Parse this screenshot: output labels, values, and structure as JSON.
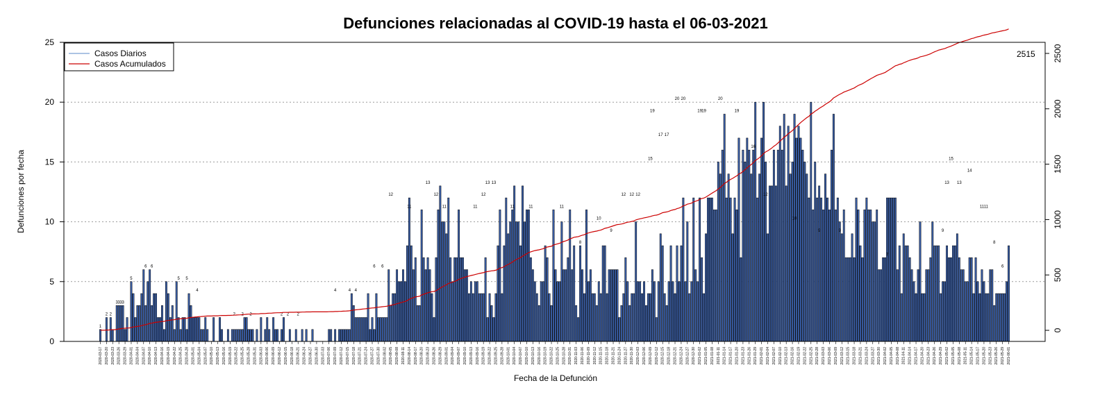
{
  "chart_data": {
    "type": "bar",
    "title": "Defunciones relacionadas al COVID-19 hasta el 06-03-2021",
    "xlabel": "Fecha de la Defunción",
    "ylabel": "Defunciones por fecha",
    "ylim": [
      0,
      25
    ],
    "y_ticks": [
      0,
      5,
      10,
      15,
      20,
      25
    ],
    "y2lim": [
      -100,
      2600
    ],
    "y2_ticks": [
      0,
      500,
      1000,
      1500,
      2000,
      2500
    ],
    "grid": "horizontal dotted",
    "legend_position": "top-left",
    "final_cumulative_label": "2515",
    "colors": {
      "bar_fill": "#3a5fa8",
      "bar_stroke": "#000000",
      "daily_legend": "#7a9fd4",
      "cumulative": "#cc0000",
      "grid": "#999999"
    },
    "series": [
      {
        "name": "Casos Diarios",
        "kind": "bar"
      },
      {
        "name": "Casos Acumulados",
        "kind": "line"
      }
    ],
    "date_start": "2020-03-17",
    "date_end": "2021-06-01",
    "tick_dates": [
      "2020-03-17",
      "2020-03-20",
      "2020-03-23",
      "2020-03-26",
      "2020-03-29",
      "2020-04-01",
      "2020-04-04",
      "2020-04-07",
      "2020-04-10",
      "2020-04-13",
      "2020-04-16",
      "2020-04-19",
      "2020-04-22",
      "2020-04-25",
      "2020-04-28",
      "2020-05-01",
      "2020-05-04",
      "2020-05-07",
      "2020-05-10",
      "2020-05-13",
      "2020-05-16",
      "2020-05-19",
      "2020-05-22",
      "2020-05-25",
      "2020-05-28",
      "2020-05-31",
      "2020-06-03",
      "2020-06-06",
      "2020-06-09",
      "2020-06-12",
      "2020-06-15",
      "2020-06-18",
      "2020-06-21",
      "2020-06-24",
      "2020-06-27",
      "2020-06-30",
      "2020-07-03",
      "2020-07-06",
      "2020-07-09",
      "2020-07-12",
      "2020-07-15",
      "2020-07-18",
      "2020-07-21",
      "2020-07-24",
      "2020-07-27",
      "2020-07-30",
      "2020-08-02",
      "2020-08-05",
      "2020-08-08",
      "2020-08-11",
      "2020-08-14",
      "2020-08-17",
      "2020-08-20",
      "2020-08-23",
      "2020-08-26",
      "2020-08-29",
      "2020-09-01",
      "2020-09-04",
      "2020-09-07",
      "2020-09-10",
      "2020-09-13",
      "2020-09-16",
      "2020-09-19",
      "2020-09-22",
      "2020-09-25",
      "2020-09-28",
      "2020-10-01",
      "2020-10-04",
      "2020-10-07",
      "2020-10-10",
      "2020-10-13",
      "2020-10-16",
      "2020-10-19",
      "2020-10-22",
      "2020-10-25",
      "2020-10-28",
      "2020-10-31",
      "2020-11-03",
      "2020-11-06",
      "2020-11-09",
      "2020-11-12",
      "2020-11-15",
      "2020-11-18",
      "2020-11-21",
      "2020-11-24",
      "2020-11-27",
      "2020-11-30",
      "2020-12-03",
      "2020-12-06",
      "2020-12-09",
      "2020-12-12",
      "2020-12-15",
      "2020-12-18",
      "2020-12-21",
      "2020-12-24",
      "2020-12-27",
      "2020-12-30",
      "2021-01-02",
      "2021-01-05",
      "2021-01-08",
      "2021-01-11",
      "2021-01-14",
      "2021-01-17",
      "2021-01-20",
      "2021-01-23",
      "2021-01-26",
      "2021-01-29",
      "2021-02-01",
      "2021-02-04",
      "2021-02-07",
      "2021-02-10",
      "2021-02-13",
      "2021-02-16",
      "2021-02-19",
      "2021-02-22",
      "2021-02-25",
      "2021-02-28",
      "2021-03-03",
      "2021-03-06",
      "2021-03-09",
      "2021-03-12",
      "2021-03-15",
      "2021-03-18",
      "2021-03-21",
      "2021-03-24",
      "2021-03-27",
      "2021-03-30",
      "2021-04-02",
      "2021-04-05",
      "2021-04-08",
      "2021-04-11",
      "2021-04-14",
      "2021-04-17",
      "2021-04-20",
      "2021-04-23",
      "2021-04-26",
      "2021-04-29",
      "2021-05-02",
      "2021-05-05",
      "2021-05-08",
      "2021-05-11",
      "2021-05-14",
      "2021-05-17",
      "2021-05-20",
      "2021-05-23",
      "2021-05-26",
      "2021-05-29",
      "2021-06-01"
    ],
    "daily": [
      1,
      0,
      0,
      2,
      0,
      2,
      1,
      0,
      3,
      3,
      3,
      3,
      1,
      2,
      0,
      5,
      4,
      2,
      3,
      3,
      4,
      6,
      3,
      5,
      6,
      3,
      4,
      4,
      2,
      2,
      3,
      1,
      5,
      4,
      2,
      3,
      1,
      5,
      2,
      1,
      2,
      2,
      1,
      4,
      3,
      2,
      2,
      2,
      2,
      1,
      1,
      2,
      1,
      0,
      0,
      2,
      0,
      0,
      2,
      1,
      0,
      0,
      1,
      0,
      1,
      1,
      1,
      1,
      1,
      1,
      2,
      2,
      1,
      1,
      1,
      0,
      1,
      0,
      2,
      0,
      1,
      2,
      1,
      0,
      2,
      1,
      1,
      0,
      1,
      2,
      0,
      0,
      1,
      0,
      0,
      1,
      0,
      0,
      1,
      0,
      1,
      0,
      0,
      1,
      0,
      0,
      0,
      0,
      0,
      0,
      0,
      1,
      1,
      0,
      1,
      0,
      1,
      1,
      1,
      1,
      1,
      1,
      4,
      3,
      2,
      2,
      2,
      2,
      2,
      2,
      4,
      1,
      2,
      1,
      4,
      2,
      2,
      2,
      2,
      2,
      6,
      3,
      4,
      4,
      6,
      5,
      5,
      6,
      5,
      8,
      12,
      8,
      6,
      7,
      3,
      3,
      11,
      7,
      6,
      7,
      6,
      4,
      2,
      7,
      11,
      13,
      10,
      10,
      9,
      12,
      7,
      5,
      7,
      7,
      11,
      7,
      7,
      6,
      6,
      4,
      5,
      4,
      5,
      5,
      4,
      4,
      4,
      7,
      2,
      4,
      3,
      2,
      4,
      8,
      11,
      4,
      8,
      12,
      9,
      10,
      11,
      13,
      10,
      10,
      8,
      13,
      10,
      11,
      11,
      7,
      6,
      5,
      4,
      3,
      5,
      5,
      8,
      7,
      4,
      3,
      11,
      6,
      5,
      5,
      10,
      6,
      6,
      7,
      11,
      6,
      8,
      3,
      2,
      8,
      6,
      4,
      11,
      5,
      6,
      4,
      4,
      3,
      5,
      4,
      8,
      8,
      4,
      6,
      6,
      6,
      6,
      6,
      2,
      3,
      4,
      7,
      5,
      3,
      4,
      4,
      10,
      5,
      5,
      4,
      5,
      3,
      4,
      4,
      6,
      5,
      2,
      5,
      9,
      8,
      4,
      3,
      5,
      8,
      5,
      4,
      8,
      5,
      8,
      12,
      5,
      10,
      4,
      5,
      12,
      6,
      5,
      12,
      7,
      4,
      9,
      12,
      12,
      12,
      11,
      11,
      15,
      14,
      16,
      19,
      12,
      14,
      12,
      9,
      12,
      11,
      17,
      7,
      16,
      15,
      17,
      16,
      14,
      16,
      20,
      12,
      14,
      17,
      20,
      15,
      9,
      13,
      13,
      16,
      13,
      16,
      18,
      16,
      19,
      13,
      18,
      14,
      15,
      19,
      17,
      18,
      17,
      16,
      15,
      14,
      12,
      20,
      11,
      15,
      12,
      13,
      12,
      11,
      14,
      12,
      11,
      16,
      19,
      11,
      12,
      10,
      9,
      11,
      7,
      7,
      7,
      9,
      7,
      12,
      11,
      8,
      7,
      11,
      12,
      11,
      11,
      10,
      10,
      11,
      6,
      6,
      7,
      7,
      12,
      12,
      12,
      12,
      12,
      6,
      8,
      4,
      9,
      8,
      8,
      7,
      6,
      5,
      4,
      6,
      10,
      4,
      4,
      6,
      6,
      7,
      10,
      8,
      8,
      8,
      4,
      5,
      5,
      8,
      7,
      7,
      8,
      8,
      9,
      7,
      6,
      6,
      5,
      5,
      7,
      7,
      4,
      7,
      5,
      4,
      6,
      5,
      4,
      4,
      6,
      6,
      3,
      4,
      4,
      4,
      4,
      4,
      5,
      8,
      5,
      2,
      5,
      6,
      6,
      3,
      6,
      8,
      4,
      6,
      9,
      3,
      9,
      2,
      5,
      3,
      5,
      6,
      4,
      4,
      3,
      4,
      9,
      2,
      2,
      4,
      7,
      3,
      1,
      2,
      2,
      2,
      4,
      4,
      3,
      1,
      2,
      4,
      1,
      1,
      3,
      3,
      4,
      3,
      1,
      2,
      2,
      3,
      3,
      3,
      4,
      1,
      2,
      1,
      1,
      1,
      0,
      1,
      1,
      2,
      2,
      2,
      2,
      1,
      2,
      3,
      4,
      3,
      3,
      7,
      3,
      3,
      2,
      3,
      2,
      2,
      3,
      3,
      2,
      2,
      2,
      3,
      2,
      3,
      2,
      2,
      0,
      2,
      0,
      2,
      1,
      2,
      0,
      5,
      5,
      5,
      4,
      5,
      5,
      4,
      4,
      5,
      5,
      4,
      4,
      6,
      4,
      6,
      6,
      6,
      4,
      9,
      8,
      6,
      9,
      11,
      13,
      13,
      12,
      10,
      9,
      10,
      15,
      11,
      8,
      10,
      6,
      11,
      13,
      5,
      10,
      9,
      8,
      9,
      7,
      8,
      6,
      6,
      8,
      10,
      14,
      12,
      10,
      9,
      9,
      9,
      8,
      7,
      9,
      10,
      8,
      8,
      11,
      7,
      7,
      11,
      11,
      6,
      6,
      6,
      5,
      5,
      8,
      8,
      4,
      7,
      6,
      7,
      7,
      7,
      8,
      6,
      5,
      5,
      4,
      4,
      3,
      3,
      4,
      3,
      4,
      2,
      4,
      3,
      4,
      2,
      4,
      1,
      1,
      3,
      6,
      3,
      3,
      2,
      1,
      1,
      1
    ],
    "bar_labels": [
      {
        "date": "2020-03-17",
        "text": "1"
      },
      {
        "date": "2020-03-20",
        "text": "2"
      },
      {
        "date": "2020-03-22",
        "text": "2"
      },
      {
        "date": "2020-03-25",
        "text": "3"
      },
      {
        "date": "2020-03-26",
        "text": "3"
      },
      {
        "date": "2020-03-27",
        "text": "3"
      },
      {
        "date": "2020-03-28",
        "text": "3"
      },
      {
        "date": "2020-04-01",
        "text": "5"
      },
      {
        "date": "2020-04-08",
        "text": "6"
      },
      {
        "date": "2020-04-11",
        "text": "6"
      },
      {
        "date": "2020-04-24",
        "text": "5"
      },
      {
        "date": "2020-04-28",
        "text": "5"
      },
      {
        "date": "2020-05-03",
        "text": "4"
      },
      {
        "date": "2020-05-21",
        "text": "2"
      },
      {
        "date": "2020-05-25",
        "text": "2"
      },
      {
        "date": "2020-05-29",
        "text": "2"
      },
      {
        "date": "2020-06-13",
        "text": "2"
      },
      {
        "date": "2020-06-16",
        "text": "2"
      },
      {
        "date": "2020-06-21",
        "text": "2"
      },
      {
        "date": "2020-07-09",
        "text": "4"
      },
      {
        "date": "2020-07-16",
        "text": "4"
      },
      {
        "date": "2020-07-19",
        "text": "4"
      },
      {
        "date": "2020-07-28",
        "text": "6"
      },
      {
        "date": "2020-08-01",
        "text": "6"
      },
      {
        "date": "2020-08-05",
        "text": "12"
      },
      {
        "date": "2020-08-14",
        "text": "11"
      },
      {
        "date": "2020-08-23",
        "text": "13"
      },
      {
        "date": "2020-08-27",
        "text": "12"
      },
      {
        "date": "2020-08-31",
        "text": "11"
      },
      {
        "date": "2020-09-15",
        "text": "11"
      },
      {
        "date": "2020-09-19",
        "text": "12"
      },
      {
        "date": "2020-09-21",
        "text": "13"
      },
      {
        "date": "2020-09-24",
        "text": "13"
      },
      {
        "date": "2020-10-03",
        "text": "11"
      },
      {
        "date": "2020-10-12",
        "text": "11"
      },
      {
        "date": "2020-10-27",
        "text": "11"
      },
      {
        "date": "2020-11-05",
        "text": "8"
      },
      {
        "date": "2020-11-14",
        "text": "10"
      },
      {
        "date": "2020-11-20",
        "text": "9"
      },
      {
        "date": "2020-11-26",
        "text": "12"
      },
      {
        "date": "2020-11-30",
        "text": "12"
      },
      {
        "date": "2020-12-03",
        "text": "12"
      },
      {
        "date": "2020-12-09",
        "text": "15"
      },
      {
        "date": "2020-12-10",
        "text": "19"
      },
      {
        "date": "2020-12-14",
        "text": "17"
      },
      {
        "date": "2020-12-17",
        "text": "17"
      },
      {
        "date": "2020-12-22",
        "text": "20"
      },
      {
        "date": "2020-12-25",
        "text": "20"
      },
      {
        "date": "2021-01-02",
        "text": "19"
      },
      {
        "date": "2021-01-04",
        "text": "19"
      },
      {
        "date": "2021-01-12",
        "text": "20"
      },
      {
        "date": "2021-01-20",
        "text": "19"
      },
      {
        "date": "2021-01-28",
        "text": "16"
      },
      {
        "date": "2021-02-03",
        "text": "12"
      },
      {
        "date": "2021-02-17",
        "text": "10"
      },
      {
        "date": "2021-03-01",
        "text": "9"
      },
      {
        "date": "2021-03-11",
        "text": "9"
      },
      {
        "date": "2021-04-03",
        "text": "7"
      },
      {
        "date": "2021-04-30",
        "text": "9"
      },
      {
        "date": "2021-05-02",
        "text": "13"
      },
      {
        "date": "2021-05-04",
        "text": "15"
      },
      {
        "date": "2021-05-08",
        "text": "13"
      },
      {
        "date": "2021-05-13",
        "text": "14"
      },
      {
        "date": "2021-05-19",
        "text": "11"
      },
      {
        "date": "2021-05-21",
        "text": "11"
      },
      {
        "date": "2021-05-25",
        "text": "8"
      },
      {
        "date": "2021-05-29",
        "text": "6"
      }
    ]
  }
}
